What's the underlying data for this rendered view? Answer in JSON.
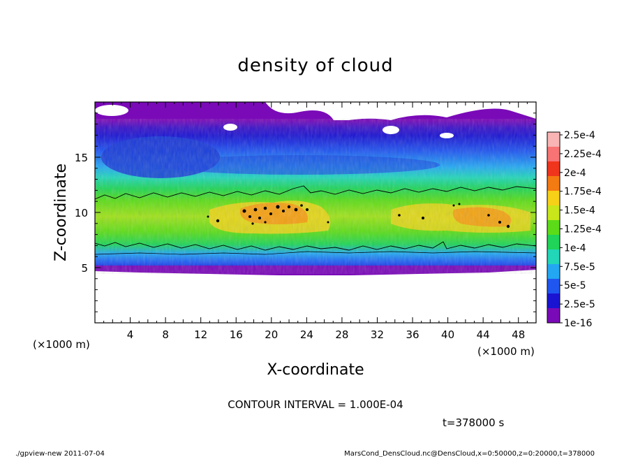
{
  "chart_data": {
    "type": "heatmap",
    "title": "density of cloud",
    "xlabel": "X-coordinate",
    "ylabel": "Z-coordinate",
    "x_unit": "(×1000 m)",
    "y_unit": "(×1000 m)",
    "xlim": [
      0,
      50
    ],
    "ylim": [
      0,
      20
    ],
    "xticks": [
      4,
      8,
      12,
      16,
      20,
      24,
      28,
      32,
      36,
      40,
      44,
      48
    ],
    "yticks": [
      5,
      10,
      15
    ],
    "colorbar": {
      "labels": [
        "1e-16",
        "2.5e-5",
        "5e-5",
        "7.5e-5",
        "1e-4",
        "1.25e-4",
        "1.5e-4",
        "1.75e-4",
        "2e-4",
        "2.25e-4",
        "2.5e-4"
      ],
      "colors": [
        "#7a0ab8",
        "#1a14d2",
        "#1f56f0",
        "#23a7f2",
        "#22d6b8",
        "#1fd458",
        "#5cdc18",
        "#c8e61a",
        "#f7d018",
        "#f47a12",
        "#f0351d",
        "#f87373",
        "#f9b4b4"
      ]
    },
    "contour_interval": "CONTOUR INTERVAL = 1.000E-04",
    "time_label": "t=378000 s"
  },
  "footer": {
    "left": "./gpview-new  2011-07-04",
    "right": "MarsCond_DensCloud.nc@DensCloud,x=0:50000,z=0:20000,t=378000"
  }
}
